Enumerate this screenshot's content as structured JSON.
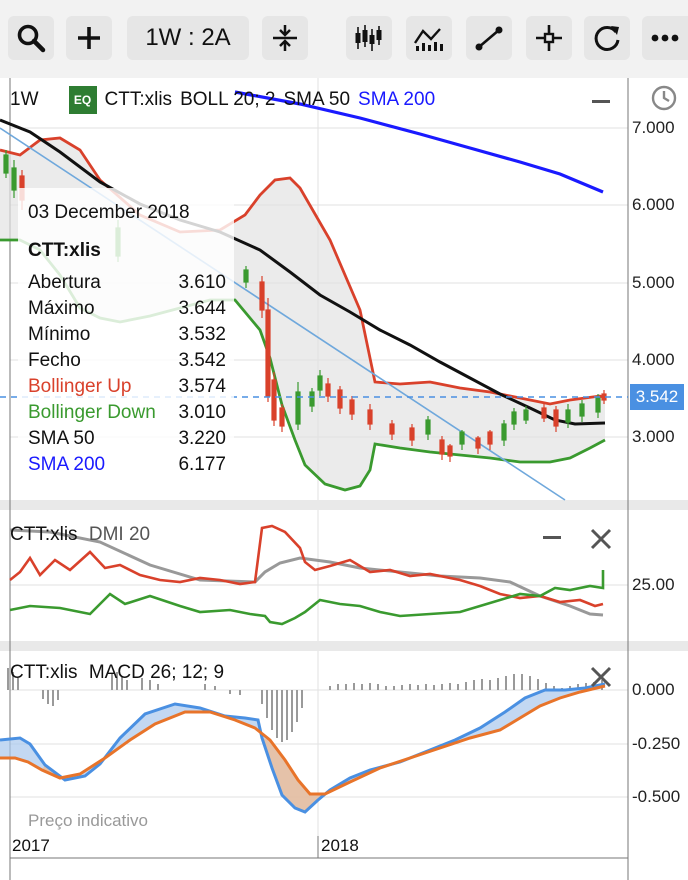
{
  "toolbar": {
    "range_label": "1W : 2A",
    "buttons": [
      "search-icon",
      "plus-icon",
      "range-button",
      "compare-icon",
      "candles-icon",
      "indicators-icon",
      "draw-line-icon",
      "crosshair-icon",
      "refresh-icon",
      "more-icon"
    ]
  },
  "main_chart": {
    "period": "1W",
    "badge": "EQ",
    "symbol": "CTT:xlis",
    "indicators": [
      {
        "name": "BOLL 20; 2",
        "color": "#111111"
      },
      {
        "name": "SMA 50",
        "color": "#111111"
      },
      {
        "name": "SMA 200",
        "color": "#1a1aff"
      }
    ],
    "y_ticks": [
      "7.000",
      "6.000",
      "5.000",
      "4.000",
      "3.000"
    ],
    "current_price": "3.542",
    "tooltip": {
      "date": "03 December 2018",
      "symbol": "CTT:xlis",
      "rows": [
        {
          "label": "Abertura",
          "value": "3.610",
          "color": "#111111"
        },
        {
          "label": "Máximo",
          "value": "3.644",
          "color": "#111111"
        },
        {
          "label": "Mínimo",
          "value": "3.532",
          "color": "#111111"
        },
        {
          "label": "Fecho",
          "value": "3.542",
          "color": "#111111"
        },
        {
          "label": "Bollinger Up",
          "value": "3.574",
          "color": "#d9412b"
        },
        {
          "label": "Bollinger Down",
          "value": "3.010",
          "color": "#3a9a2f"
        },
        {
          "label": "SMA 50",
          "value": "3.220",
          "color": "#111111"
        },
        {
          "label": "SMA 200",
          "value": "6.177",
          "color": "#1a1aff"
        }
      ]
    }
  },
  "dmi_panel": {
    "symbol": "CTT:xlis",
    "indicator": "DMI 20",
    "y_ticks": [
      "25.00"
    ]
  },
  "macd_panel": {
    "symbol": "CTT:xlis",
    "indicator": "MACD 26; 12; 9",
    "y_ticks": [
      "0.000",
      "-0.250",
      "-0.500"
    ],
    "note": "Preço indicativo"
  },
  "x_axis": {
    "labels": [
      "2017",
      "2018"
    ]
  },
  "colors": {
    "boll": "#d9412b",
    "boll_down": "#3a9a2f",
    "sma200": "#1a1aff",
    "trend": "#6fa8dc",
    "accent": "#4a90e2"
  }
}
